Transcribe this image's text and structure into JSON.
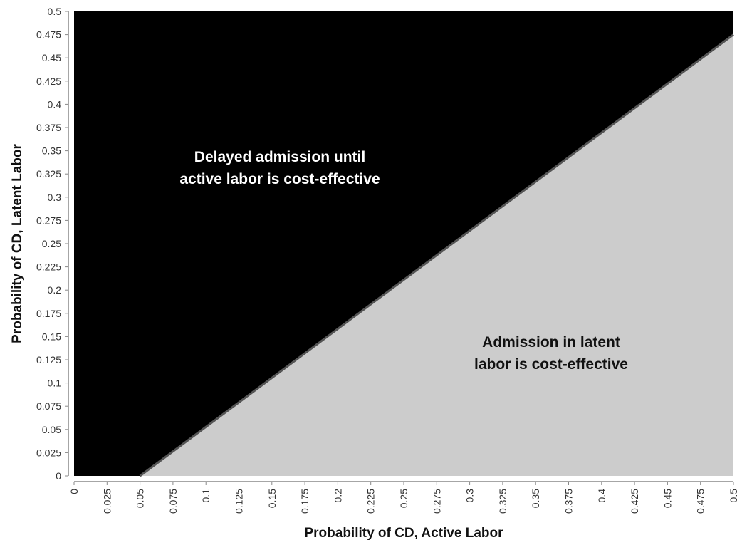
{
  "chart_data": {
    "type": "area",
    "xlabel": "Probability of CD, Active Labor",
    "ylabel": "Probability of CD, Latent Labor",
    "xlim": [
      0,
      0.5
    ],
    "ylim": [
      0,
      0.5
    ],
    "x_ticks": [
      "0",
      "0.025",
      "0.05",
      "0.075",
      "0.1",
      "0.125",
      "0.15",
      "0.175",
      "0.2",
      "0.225",
      "0.25",
      "0.275",
      "0.3",
      "0.325",
      "0.35",
      "0.375",
      "0.4",
      "0.425",
      "0.45",
      "0.475",
      "0.5"
    ],
    "y_ticks": [
      "0",
      "0.025",
      "0.05",
      "0.075",
      "0.1",
      "0.125",
      "0.15",
      "0.175",
      "0.2",
      "0.225",
      "0.25",
      "0.275",
      "0.3",
      "0.325",
      "0.35",
      "0.375",
      "0.4",
      "0.425",
      "0.45",
      "0.475",
      "0.5"
    ],
    "threshold_line": {
      "x": [
        0.05,
        0.5
      ],
      "y": [
        0,
        0.475
      ]
    },
    "regions": [
      {
        "label_lines": [
          "Delayed admission until",
          "active labor is cost-effective"
        ],
        "color": "#000000",
        "text_color": "#ffffff"
      },
      {
        "label_lines": [
          "Admission in latent",
          "labor is cost-effective"
        ],
        "color": "#cccccc",
        "text_color": "#111111"
      }
    ],
    "grid": false
  }
}
